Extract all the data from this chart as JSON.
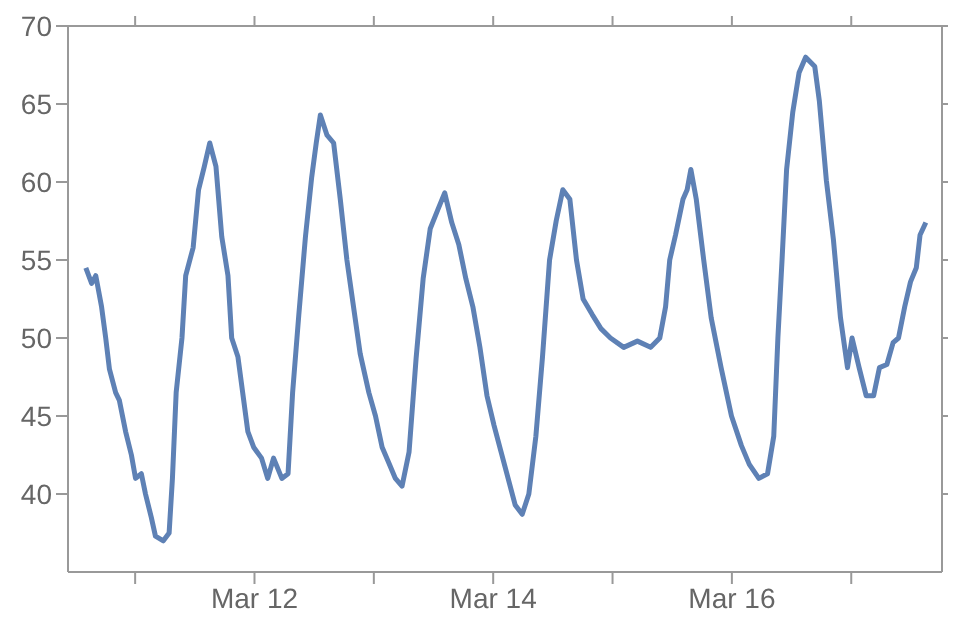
{
  "chart_data": {
    "type": "line",
    "color": "#5e81b5",
    "line_style": "solid",
    "marker": "none",
    "grid": false,
    "legend": false,
    "x": [
      "--03-10T14:05",
      "--03-10T15:15",
      "--03-10T16:05",
      "--03-10T17:15",
      "--03-10T18:05",
      "--03-10T18:50",
      "--03-10T20:05",
      "--03-10T20:50",
      "--03-10T22:05",
      "--03-10T23:15",
      "--03-11T00:05",
      "--03-11T01:15",
      "--03-11T02:05",
      "--03-11T03:15",
      "--03-11T04:05",
      "--03-11T05:40",
      "--03-11T06:50",
      "--03-11T07:30",
      "--03-11T08:15",
      "--03-11T09:25",
      "--03-11T10:10",
      "--03-11T11:40",
      "--03-11T12:45",
      "--03-11T13:55",
      "--03-11T15:00",
      "--03-11T16:15",
      "--03-11T17:25",
      "--03-11T18:40",
      "--03-11T19:25",
      "--03-11T20:40",
      "--03-11T21:50",
      "--03-11T22:40",
      "--03-11T23:50",
      "--03-12T01:25",
      "--03-12T02:40",
      "--03-12T03:50",
      "--03-12T05:30",
      "--03-12T06:45",
      "--03-12T07:40",
      "--03-12T08:55",
      "--03-12T10:15",
      "--03-12T11:30",
      "--03-12T12:25",
      "--03-12T13:15",
      "--03-12T14:35",
      "--03-12T15:55",
      "--03-12T17:15",
      "--03-12T18:35",
      "--03-12T19:55",
      "--03-12T21:15",
      "--03-12T23:00",
      "--03-13T00:20",
      "--03-13T01:40",
      "--03-13T03:00",
      "--03-13T04:20",
      "--03-13T05:40",
      "--03-13T07:05",
      "--03-13T08:30",
      "--03-13T09:55",
      "--03-13T11:20",
      "--03-13T12:50",
      "--03-13T14:15",
      "--03-13T15:40",
      "--03-13T17:05",
      "--03-13T18:30",
      "--03-13T19:55",
      "--03-13T21:20",
      "--03-13T22:45",
      "--03-14T00:10",
      "--03-14T01:35",
      "--03-14T03:00",
      "--03-14T04:25",
      "--03-14T05:50",
      "--03-14T07:10",
      "--03-14T08:35",
      "--03-14T09:55",
      "--03-14T11:20",
      "--03-14T12:40",
      "--03-14T14:00",
      "--03-14T15:25",
      "--03-14T16:45",
      "--03-14T18:05",
      "--03-14T19:55",
      "--03-14T21:40",
      "--03-14T23:35",
      "--03-15T02:15",
      "--03-15T05:00",
      "--03-15T07:40",
      "--03-15T09:30",
      "--03-15T10:40",
      "--03-15T11:30",
      "--03-15T12:40",
      "--03-15T14:10",
      "--03-15T15:00",
      "--03-15T15:45",
      "--03-15T16:50",
      "--03-15T18:20",
      "--03-15T19:50",
      "--03-15T21:50",
      "--03-15T23:55",
      "--03-16T01:55",
      "--03-16T03:30",
      "--03-16T05:25",
      "--03-16T07:10",
      "--03-16T08:25",
      "--03-16T09:15",
      "--03-16T10:05",
      "--03-16T11:00",
      "--03-16T12:15",
      "--03-16T13:30",
      "--03-16T14:50",
      "--03-16T16:40",
      "--03-16T17:35",
      "--03-16T19:00",
      "--03-16T20:25",
      "--03-16T21:50",
      "--03-16T23:15",
      "--03-17T00:10",
      "--03-17T01:35",
      "--03-17T03:00",
      "--03-17T04:30",
      "--03-17T05:40",
      "--03-17T07:10",
      "--03-17T08:25",
      "--03-17T09:30",
      "--03-17T10:45",
      "--03-17T11:55",
      "--03-17T13:05",
      "--03-17T13:50",
      "--03-17T15:00"
    ],
    "values": [
      54.5,
      53.5,
      54,
      52,
      50,
      48,
      46.5,
      46,
      44,
      42.5,
      41,
      41.3,
      40,
      38.5,
      37.3,
      37,
      37.5,
      41,
      46.5,
      50,
      54,
      55.8,
      59.5,
      61,
      62.5,
      61,
      56.5,
      54,
      50,
      48.8,
      46,
      44,
      43,
      42.3,
      41,
      42.3,
      41,
      41.3,
      46.5,
      51.5,
      56.5,
      60.3,
      62.5,
      64.3,
      63,
      62.5,
      58.9,
      55,
      52,
      49,
      46.5,
      45,
      43,
      42,
      41,
      40.5,
      42.7,
      48.7,
      53.8,
      57,
      58.2,
      59.3,
      57.4,
      56,
      53.8,
      52,
      49.4,
      46.3,
      44.4,
      42.7,
      41,
      39.3,
      38.7,
      40,
      43.7,
      48.8,
      55,
      57.5,
      59.5,
      58.9,
      55,
      52.5,
      51.5,
      50.6,
      50,
      49.4,
      49.8,
      49.4,
      50,
      52,
      55,
      56.6,
      58.9,
      59.5,
      60.8,
      58.9,
      55,
      51.3,
      48.1,
      45,
      43.1,
      41.9,
      41,
      41.3,
      43.7,
      50,
      55,
      60.8,
      64.5,
      67,
      68,
      67.4,
      65.2,
      60.1,
      56.3,
      51.3,
      48.1,
      50,
      48.1,
      46.3,
      46.3,
      48.1,
      48.3,
      49.7,
      50,
      52,
      53.6,
      54.5,
      56.6,
      57.4
    ],
    "xlim": [
      "--03-10T10:30",
      "--03-17T18:15"
    ],
    "xticks": [
      {
        "value": "--03-11",
        "label": null
      },
      {
        "value": "--03-12",
        "label": "Mar 12"
      },
      {
        "value": "--03-13",
        "label": null
      },
      {
        "value": "--03-14",
        "label": "Mar 14"
      },
      {
        "value": "--03-15",
        "label": null
      },
      {
        "value": "--03-16",
        "label": "Mar 16"
      },
      {
        "value": "--03-17",
        "label": null
      }
    ],
    "ylim": [
      35,
      70
    ],
    "yticks": [
      40,
      45,
      50,
      55,
      60,
      65,
      70
    ]
  }
}
